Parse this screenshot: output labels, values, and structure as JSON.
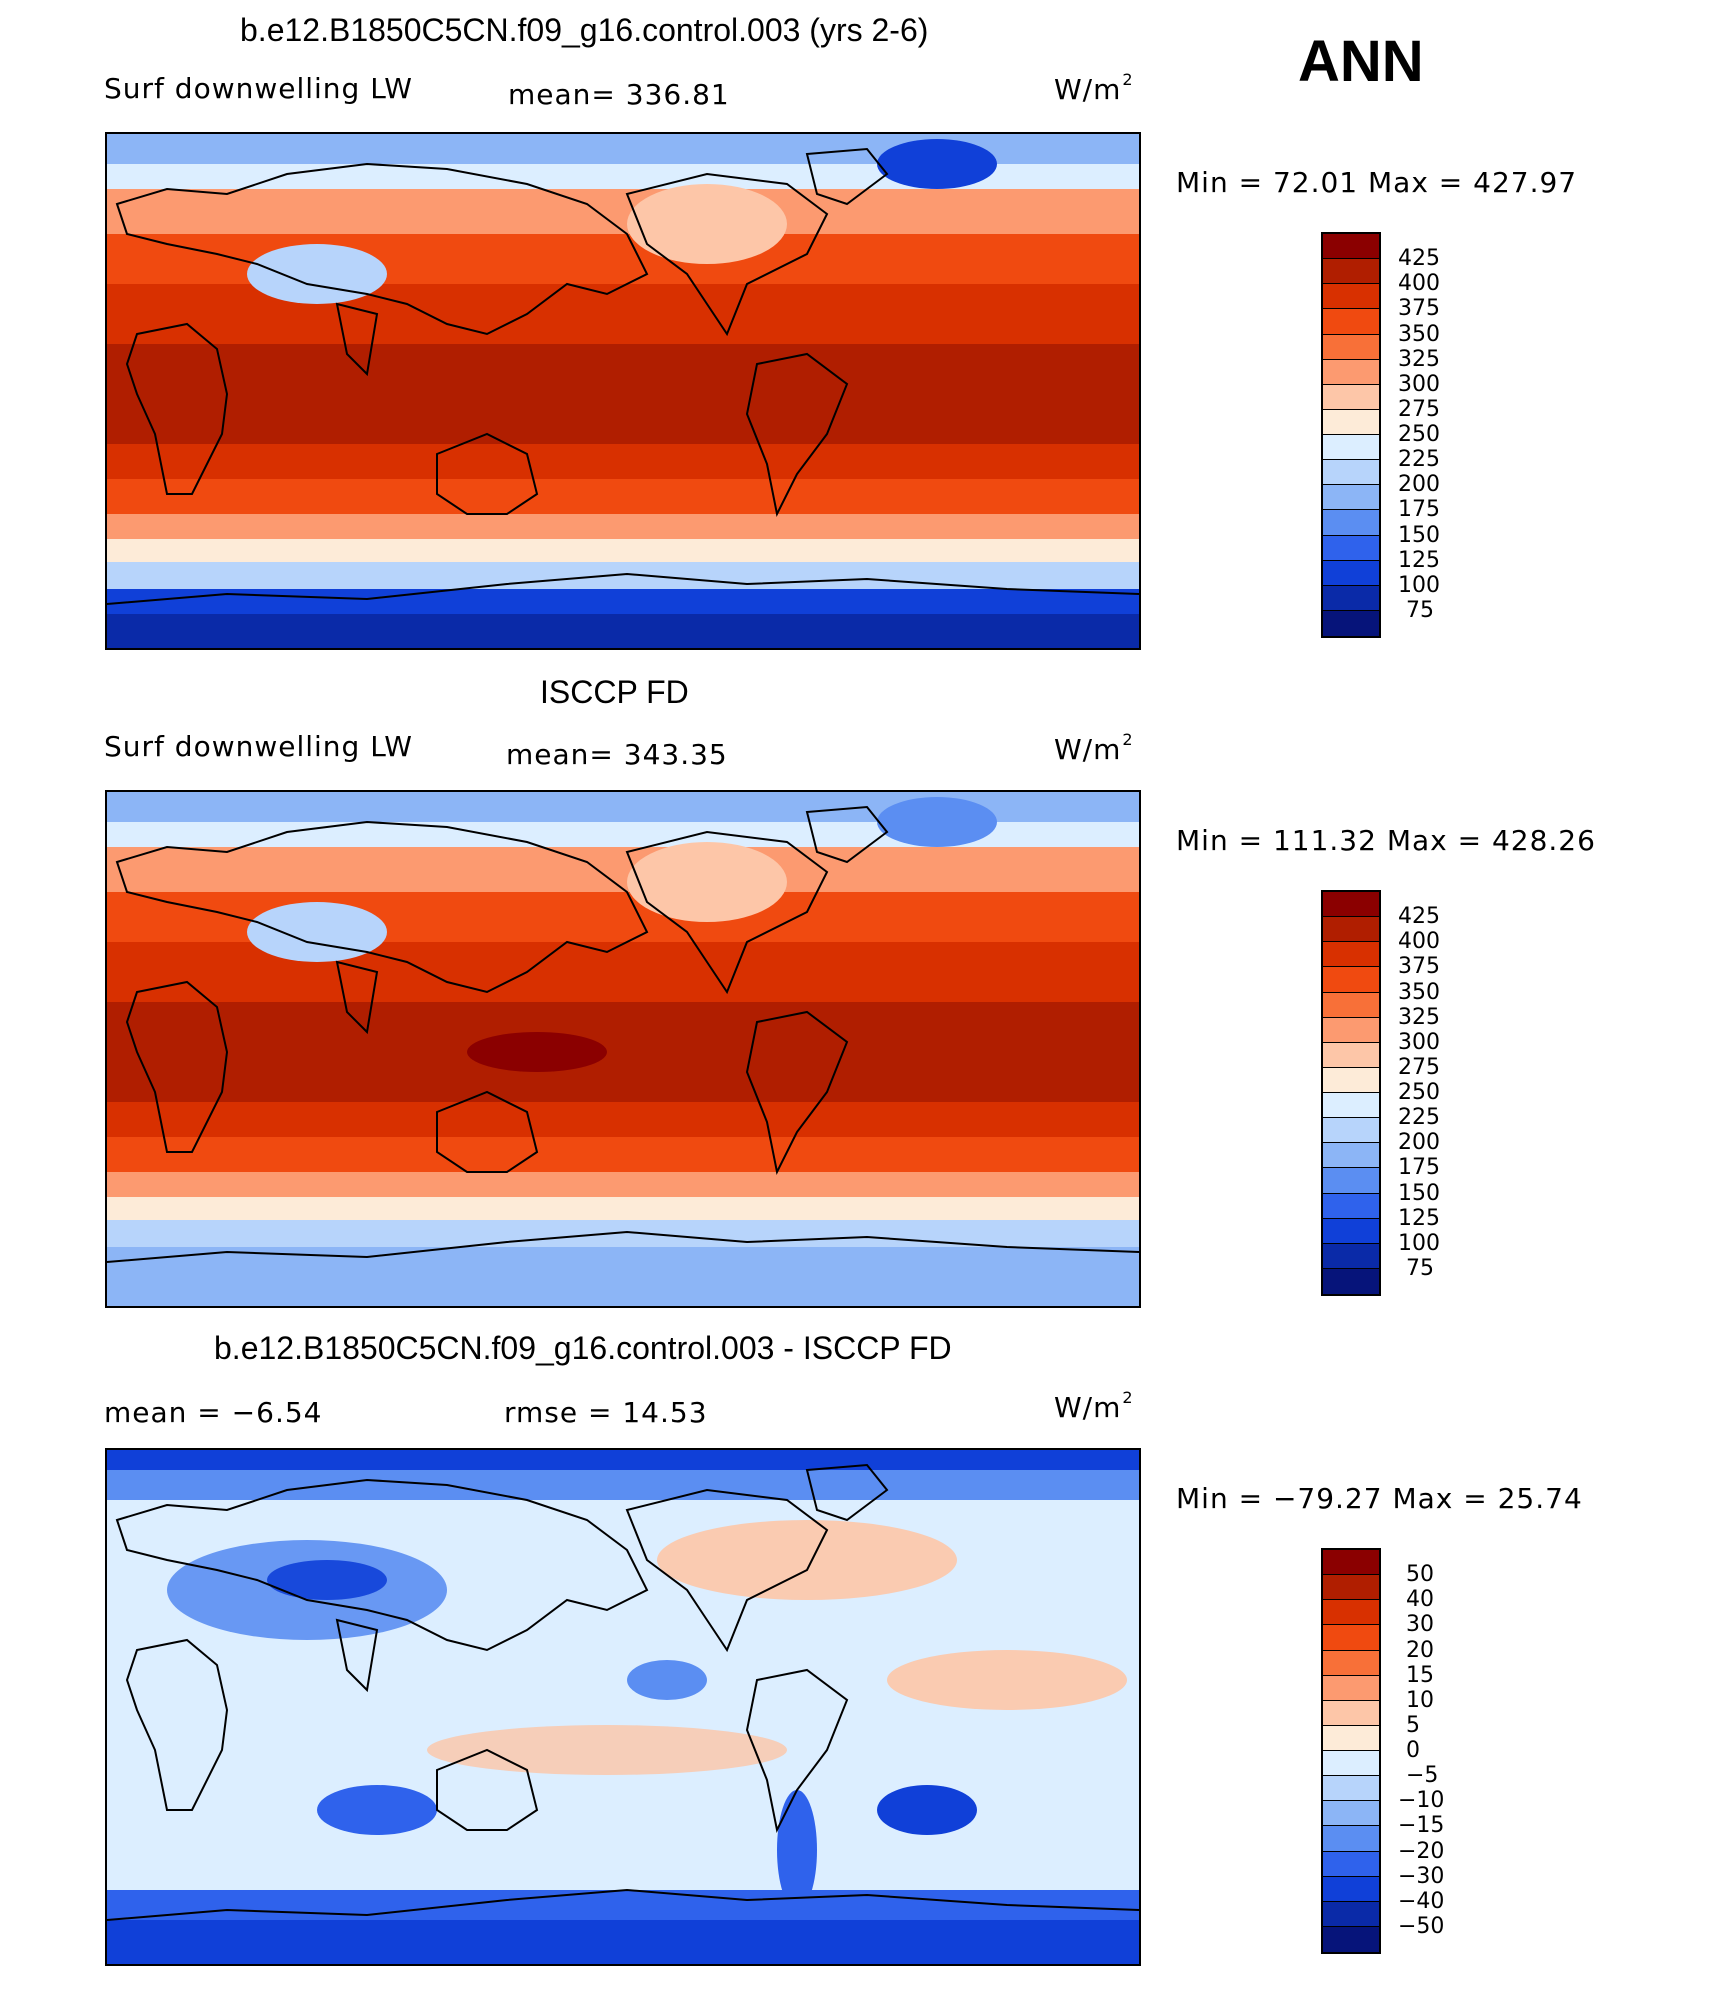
{
  "header": {
    "season": "ANN"
  },
  "panels": [
    {
      "title": "b.e12.B1850C5CN.f09_g16.control.003 (yrs 2-6)",
      "left_label": "Surf  downwelling  LW",
      "mid_label": "mean=  336.81",
      "units": "W/m",
      "units_sup": "2",
      "minmax": "Min  =    72.01  Max  =  427.97",
      "colorbar_labels": [
        "425",
        "400",
        "375",
        "350",
        "325",
        "300",
        "275",
        "250",
        "225",
        "200",
        "175",
        "150",
        "125",
        "100",
        "75"
      ],
      "colorbar_colors": [
        "#8b0000",
        "#b01e00",
        "#d83000",
        "#f04a10",
        "#f87038",
        "#fc9a70",
        "#fdc6a8",
        "#fdebd8",
        "#dceeff",
        "#b7d4fb",
        "#8cb5f6",
        "#5b8ef2",
        "#2f62ec",
        "#1040d8",
        "#0a2aa8",
        "#06147a"
      ],
      "field": "model"
    },
    {
      "title": "ISCCP FD",
      "left_label": "Surf  downwelling  LW",
      "mid_label": "mean=  343.35",
      "units": "W/m",
      "units_sup": "2",
      "minmax": "Min  =  111.32  Max  =  428.26",
      "colorbar_labels": [
        "425",
        "400",
        "375",
        "350",
        "325",
        "300",
        "275",
        "250",
        "225",
        "200",
        "175",
        "150",
        "125",
        "100",
        "75"
      ],
      "colorbar_colors": [
        "#8b0000",
        "#b01e00",
        "#d83000",
        "#f04a10",
        "#f87038",
        "#fc9a70",
        "#fdc6a8",
        "#fdebd8",
        "#dceeff",
        "#b7d4fb",
        "#8cb5f6",
        "#5b8ef2",
        "#2f62ec",
        "#1040d8",
        "#0a2aa8",
        "#06147a"
      ],
      "field": "obs"
    },
    {
      "title": "b.e12.B1850C5CN.f09_g16.control.003 - ISCCP FD",
      "left_label": "mean  =    −6.54",
      "mid_label": "rmse  =    14.53",
      "units": "W/m",
      "units_sup": "2",
      "minmax": "Min  =  −79.27  Max  =    25.74",
      "colorbar_labels": [
        "50",
        "40",
        "30",
        "20",
        "15",
        "10",
        "5",
        "0",
        "−5",
        "−10",
        "−15",
        "−20",
        "−30",
        "−40",
        "−50"
      ],
      "colorbar_colors": [
        "#8b0000",
        "#b01e00",
        "#d83000",
        "#f04a10",
        "#f87038",
        "#fc9a70",
        "#fdc6a8",
        "#fdebd8",
        "#dceeff",
        "#b7d4fb",
        "#8cb5f6",
        "#5b8ef2",
        "#2f62ec",
        "#1040d8",
        "#0a2aa8",
        "#06147a"
      ],
      "field": "diff"
    }
  ]
}
